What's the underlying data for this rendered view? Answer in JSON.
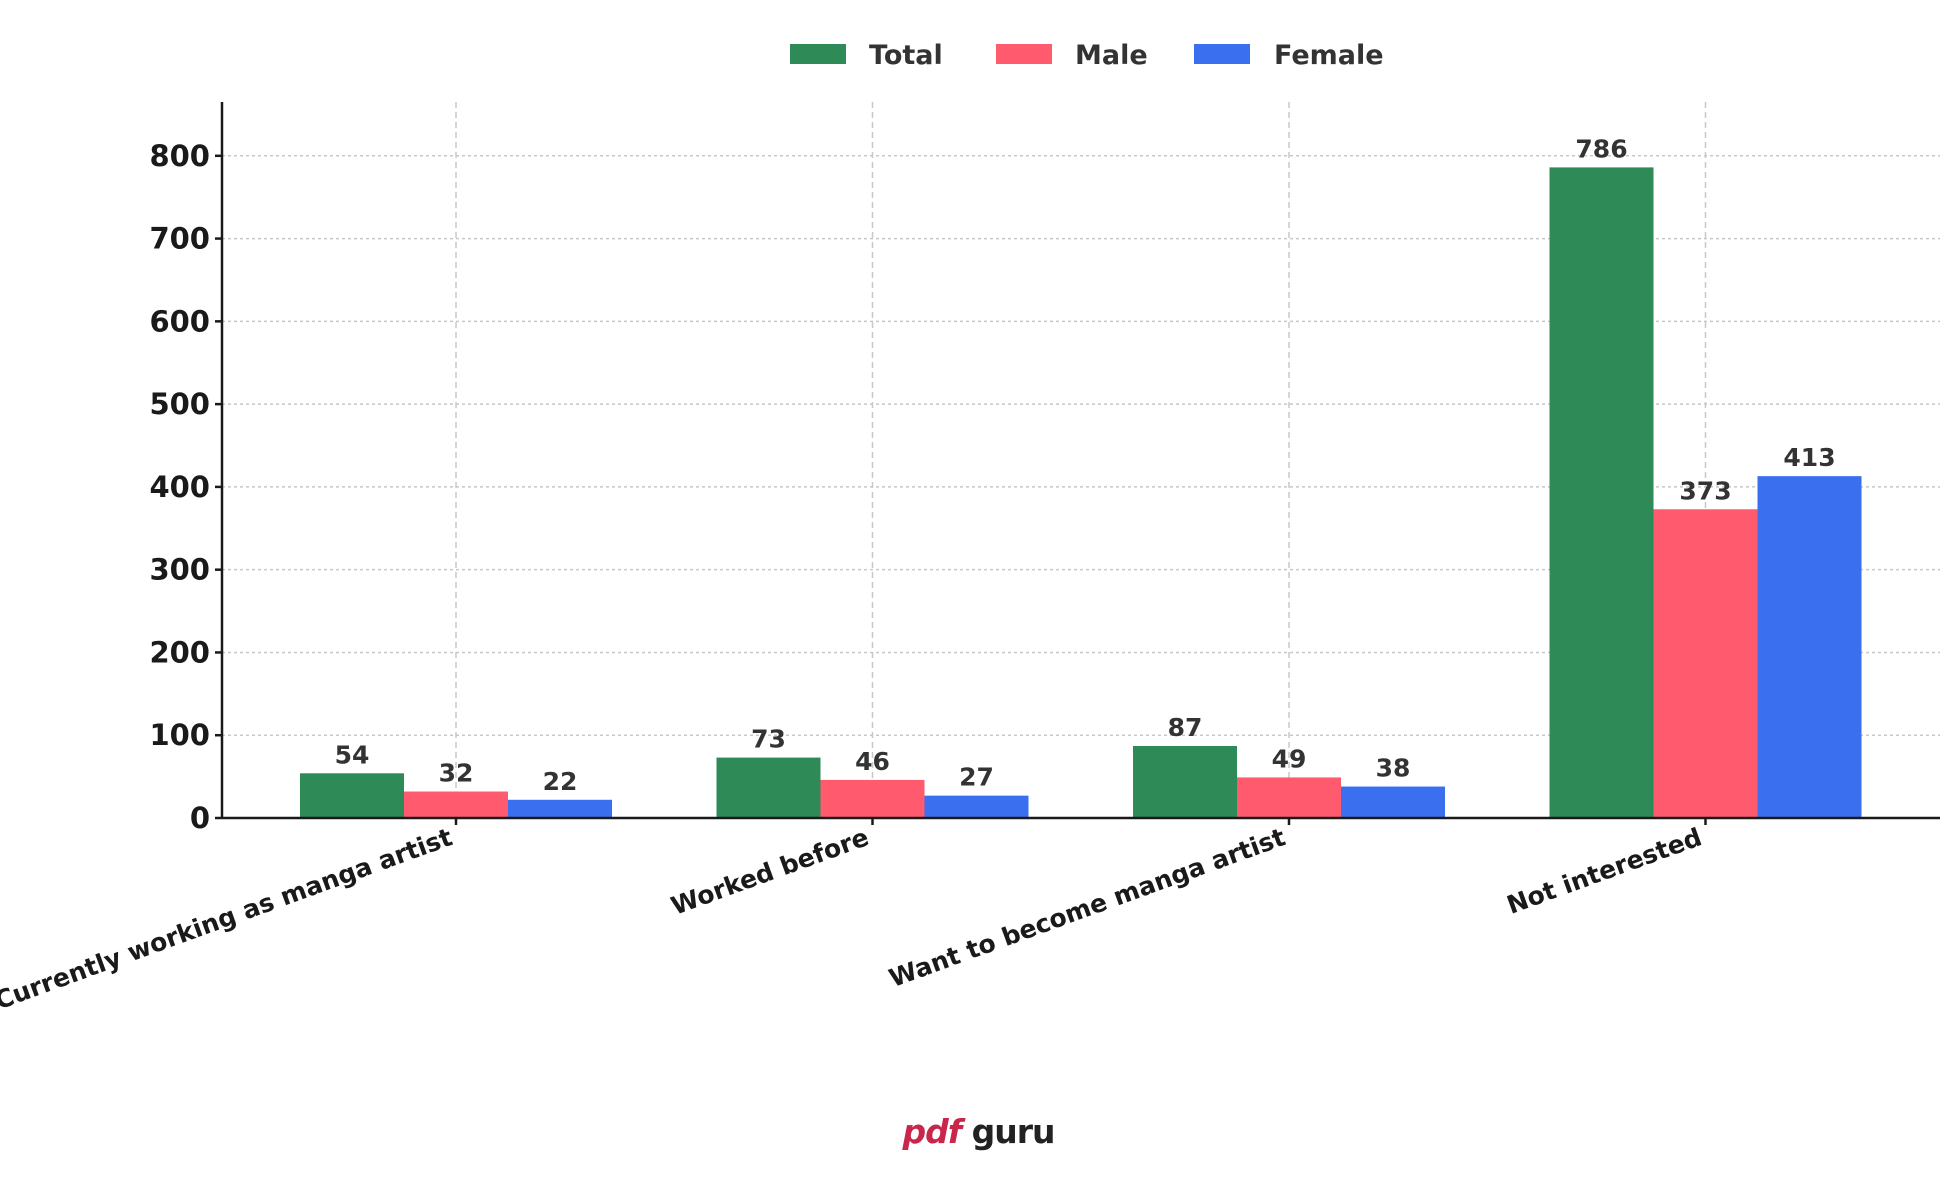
{
  "chart_data": {
    "type": "bar",
    "categories": [
      "Currently working as manga artist",
      "Worked before",
      "Want to become manga artist",
      "Not interested"
    ],
    "series": [
      {
        "name": "Total",
        "values": [
          54,
          73,
          87,
          786
        ],
        "color": "#2e8b57"
      },
      {
        "name": "Male",
        "values": [
          32,
          46,
          49,
          373
        ],
        "color": "#ff5a6e"
      },
      {
        "name": "Female",
        "values": [
          22,
          27,
          38,
          413
        ],
        "color": "#3a6fef"
      }
    ],
    "yticks": [
      0,
      100,
      200,
      300,
      400,
      500,
      600,
      700,
      800
    ],
    "ylim": [
      0,
      865
    ],
    "legend_position": "top-center",
    "grid": true,
    "data_labels": true,
    "xlabel": "",
    "ylabel": "",
    "title": ""
  },
  "branding": {
    "logo_pdf": "pdf",
    "logo_guru": " guru"
  }
}
